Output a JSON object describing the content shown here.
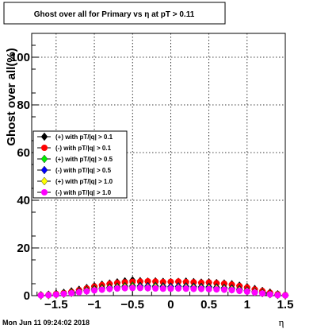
{
  "chart_data": {
    "type": "scatter",
    "title": "Ghost over all for Primary vs   η at pT > 0.11",
    "xlabel": "η",
    "ylabel": "Ghost over all(%)",
    "xlim": [
      -1.82,
      1.5
    ],
    "ylim": [
      0,
      110
    ],
    "x_ticks": [
      -1.5,
      -1,
      -0.5,
      0,
      0.5,
      1,
      1.5
    ],
    "x_tick_labels": [
      "−1.5",
      "−1",
      "−0.5",
      "0",
      "0.5",
      "1",
      "1.5"
    ],
    "y_ticks": [
      0,
      20,
      40,
      60,
      80,
      100
    ],
    "y_tick_labels": [
      "0",
      "20",
      "40",
      "60",
      "80",
      "100"
    ],
    "grid": true,
    "legend_position": "middle-left",
    "x": [
      -1.7,
      -1.6,
      -1.5,
      -1.4,
      -1.3,
      -1.2,
      -1.1,
      -1.0,
      -0.9,
      -0.8,
      -0.7,
      -0.6,
      -0.5,
      -0.4,
      -0.3,
      -0.2,
      -0.1,
      0.0,
      0.1,
      0.2,
      0.3,
      0.4,
      0.5,
      0.6,
      0.7,
      0.8,
      0.9,
      1.0,
      1.1,
      1.2,
      1.3,
      1.4,
      1.5
    ],
    "series": [
      {
        "name": "(+) with pT/|q| > 0.1",
        "color": "#000000",
        "marker": "diamond",
        "values": [
          0.2,
          0.4,
          0.8,
          1.2,
          1.8,
          2.5,
          3.2,
          4.0,
          4.6,
          5.1,
          5.6,
          6.0,
          6.4,
          6.1,
          5.9,
          6.0,
          5.8,
          5.7,
          5.8,
          5.9,
          5.7,
          5.5,
          5.6,
          5.3,
          5.1,
          4.8,
          4.2,
          3.6,
          2.8,
          2.0,
          1.3,
          0.6,
          0.2
        ]
      },
      {
        "name": "(-) with pT/|q| > 0.1",
        "color": "#ff0000",
        "marker": "circle",
        "values": [
          0.2,
          0.3,
          0.7,
          1.1,
          1.6,
          2.3,
          3.0,
          3.8,
          4.4,
          4.9,
          5.3,
          5.6,
          5.8,
          5.9,
          6.0,
          5.9,
          5.7,
          5.8,
          5.9,
          5.7,
          5.6,
          5.4,
          5.5,
          5.2,
          5.0,
          4.6,
          4.0,
          3.4,
          2.6,
          1.9,
          1.2,
          0.6,
          0.2
        ]
      },
      {
        "name": "(+) with pT/|q| > 0.5",
        "color": "#00ee00",
        "marker": "diamond",
        "values": [
          0.1,
          0.3,
          0.5,
          0.9,
          1.3,
          1.8,
          2.3,
          2.8,
          3.2,
          3.5,
          3.8,
          4.0,
          4.2,
          4.1,
          4.0,
          4.1,
          3.9,
          3.8,
          3.9,
          3.9,
          3.8,
          3.7,
          3.7,
          3.5,
          3.3,
          3.1,
          2.7,
          2.2,
          1.7,
          1.2,
          0.8,
          0.4,
          0.1
        ]
      },
      {
        "name": "(-) with pT/|q| > 0.5",
        "color": "#0000ff",
        "marker": "diamond",
        "values": [
          0.1,
          0.2,
          0.5,
          0.8,
          1.2,
          1.7,
          2.1,
          2.6,
          3.0,
          3.3,
          3.5,
          3.7,
          3.8,
          3.9,
          3.9,
          3.8,
          3.7,
          3.7,
          3.8,
          3.7,
          3.6,
          3.5,
          3.5,
          3.3,
          3.1,
          2.9,
          2.5,
          2.1,
          1.6,
          1.1,
          0.7,
          0.3,
          0.1
        ]
      },
      {
        "name": "(+) with pT/|q| > 1.0",
        "color": "#ffff00",
        "marker": "diamond",
        "values": [
          0.1,
          0.2,
          0.4,
          0.7,
          1.1,
          1.5,
          2.0,
          2.4,
          2.8,
          3.1,
          3.3,
          3.5,
          3.6,
          3.5,
          3.4,
          3.5,
          3.3,
          3.2,
          3.3,
          3.3,
          3.2,
          3.1,
          3.1,
          3.0,
          2.8,
          2.6,
          2.3,
          1.9,
          1.5,
          1.0,
          0.6,
          0.3,
          0.1
        ]
      },
      {
        "name": "(-) with pT/|q| > 1.0",
        "color": "#ff00ff",
        "marker": "circle",
        "values": [
          0.1,
          0.2,
          0.4,
          0.7,
          1.0,
          1.4,
          1.8,
          2.2,
          2.5,
          2.8,
          3.0,
          3.1,
          3.2,
          3.2,
          3.1,
          3.0,
          2.9,
          2.9,
          3.0,
          2.9,
          2.8,
          2.8,
          2.7,
          2.6,
          2.5,
          2.3,
          2.0,
          1.7,
          1.3,
          0.9,
          0.5,
          0.2,
          0.1
        ]
      }
    ]
  },
  "footer": {
    "timestamp": "Mon Jun 11 09:24:02 2018"
  }
}
